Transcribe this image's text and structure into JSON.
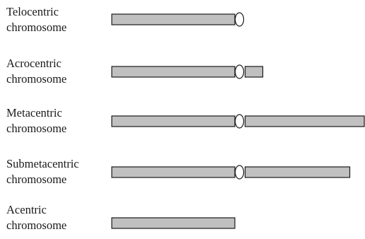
{
  "rows": [
    {
      "line1": "Telocentric",
      "line2": "chromosome"
    },
    {
      "line1": "Acrocentric",
      "line2": "chromosome"
    },
    {
      "line1": "Metacentric",
      "line2": "chromosome"
    },
    {
      "line1": "Submetacentric",
      "line2": "chromosome"
    },
    {
      "line1": "Acentric",
      "line2": "chromosome"
    }
  ],
  "colors": {
    "arm_fill": "#c0c0c0",
    "outline": "#1a1a1a",
    "centromere_fill": "#ffffff"
  }
}
